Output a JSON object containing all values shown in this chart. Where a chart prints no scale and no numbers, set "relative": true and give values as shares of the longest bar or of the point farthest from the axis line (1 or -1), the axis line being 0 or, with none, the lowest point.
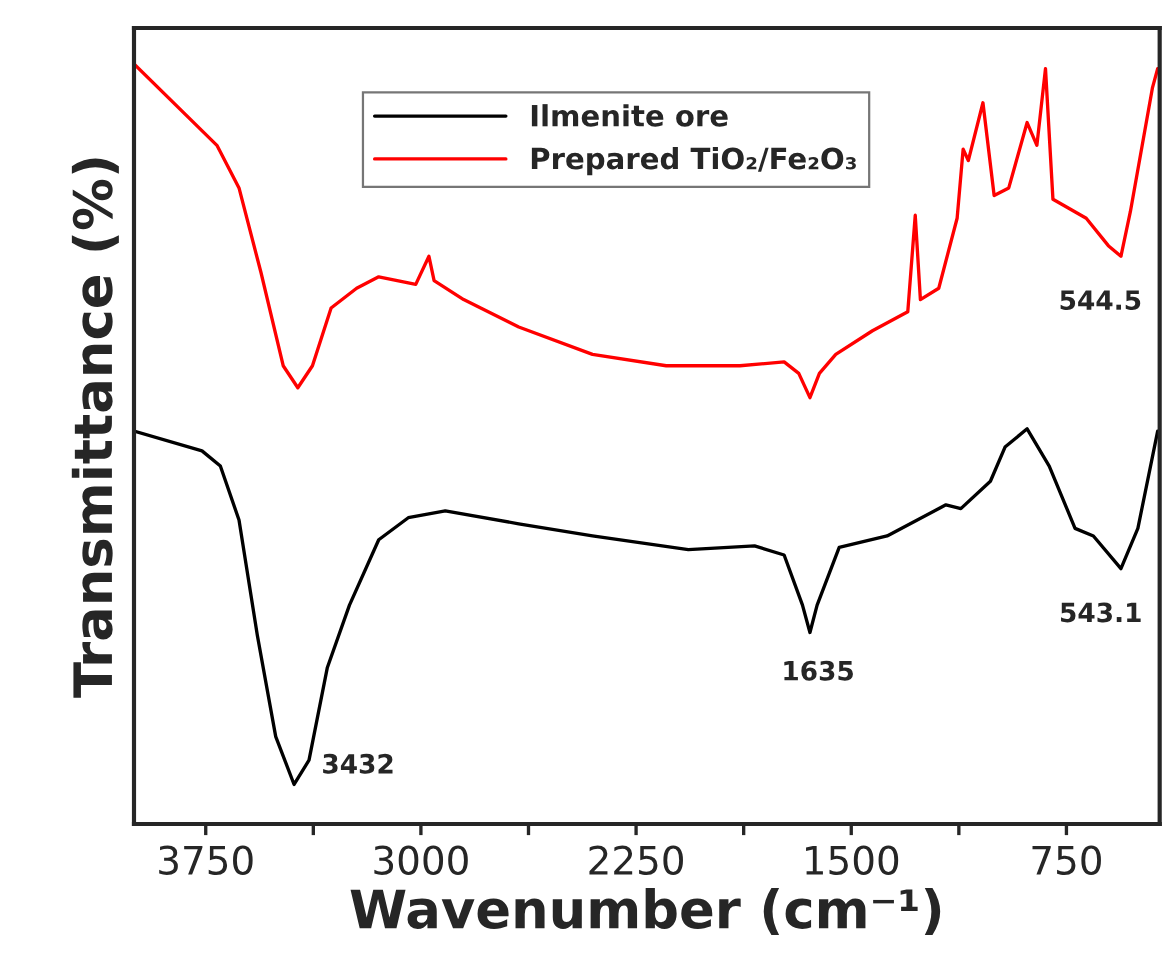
{
  "chart_data": {
    "type": "line",
    "relative": true,
    "xlabel": "Wavenumber (cm⁻¹)",
    "ylabel": "Transmittance (%)",
    "xlim": [
      4000,
      425
    ],
    "xticks": [
      3750,
      {
        "value": 3375,
        "label": null
      },
      3000,
      {
        "value": 2625,
        "label": null
      },
      2250,
      {
        "value": 1875,
        "label": null
      },
      1500,
      {
        "value": 1125,
        "label": null
      },
      750
    ],
    "legend": "top",
    "grid": false,
    "series": [
      {
        "name": "Ilmenite ore",
        "color": "#000000",
        "x": [
          4000,
          3763,
          3699,
          3634,
          3570,
          3506,
          3442,
          3390,
          3326,
          3249,
          3147,
          3044,
          2915,
          2659,
          2402,
          2068,
          1837,
          1734,
          1670,
          1644,
          1619,
          1542,
          1375,
          1170,
          1118,
          1015,
          964,
          887,
          810,
          720,
          656,
          560,
          501,
          432
        ],
        "values": [
          0.517,
          0.491,
          0.471,
          0.4,
          0.248,
          0.115,
          0.052,
          0.084,
          0.206,
          0.288,
          0.374,
          0.403,
          0.412,
          0.395,
          0.379,
          0.361,
          0.366,
          0.354,
          0.288,
          0.252,
          0.288,
          0.364,
          0.379,
          0.42,
          0.415,
          0.451,
          0.496,
          0.52,
          0.471,
          0.389,
          0.379,
          0.336,
          0.389,
          0.517
        ]
      },
      {
        "name": "Prepared TiO₂/Fe₂O₃",
        "color": "#ff0000",
        "x": [
          4000,
          3711,
          3634,
          3557,
          3480,
          3429,
          3378,
          3313,
          3224,
          3147,
          3018,
          2972,
          2954,
          2851,
          2659,
          2402,
          2145,
          1888,
          1734,
          1683,
          1644,
          1611,
          1554,
          1426,
          1303,
          1277,
          1259,
          1195,
          1131,
          1110,
          1092,
          1041,
          1002,
          951,
          887,
          853,
          823,
          797,
          681,
          604,
          560,
          527,
          450,
          432
        ],
        "values": [
          1.0,
          0.893,
          0.837,
          0.725,
          0.603,
          0.574,
          0.603,
          0.679,
          0.705,
          0.72,
          0.71,
          0.747,
          0.715,
          0.69,
          0.654,
          0.618,
          0.603,
          0.603,
          0.608,
          0.593,
          0.561,
          0.593,
          0.618,
          0.649,
          0.674,
          0.801,
          0.69,
          0.705,
          0.797,
          0.888,
          0.873,
          0.949,
          0.827,
          0.837,
          0.923,
          0.893,
          0.994,
          0.822,
          0.797,
          0.761,
          0.747,
          0.806,
          0.969,
          0.994
        ]
      }
    ],
    "annotations": [
      {
        "text": "3432",
        "x": 3432,
        "y": 0.052
      },
      {
        "text": "1635",
        "x": 1635,
        "y": 0.252
      },
      {
        "text": "543.1",
        "x": 543.1,
        "y": 0.336
      },
      {
        "text": "544.5",
        "x": 544.5,
        "y": 0.747
      }
    ]
  }
}
